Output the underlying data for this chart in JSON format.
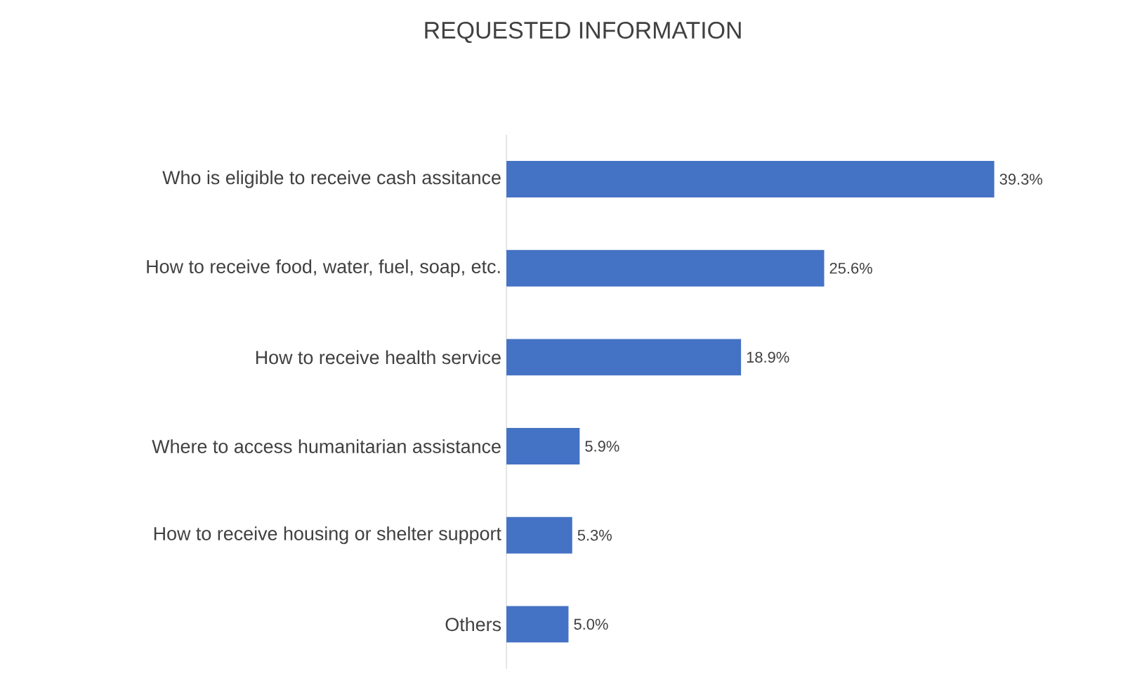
{
  "chart_data": {
    "type": "bar",
    "orientation": "horizontal",
    "title": "REQUESTED INFORMATION",
    "categories": [
      "Who is eligible to receive cash assitance",
      "How to receive food, water, fuel, soap, etc.",
      "How to receive health service",
      "Where to access humanitarian assistance",
      "How to receive housing or shelter support",
      "Others"
    ],
    "values": [
      39.3,
      25.6,
      18.9,
      5.9,
      5.3,
      5.0
    ],
    "value_labels": [
      "39.3%",
      "25.6%",
      "18.9%",
      "5.9%",
      "5.3%",
      "5.0%"
    ],
    "color": "#4472c4"
  }
}
